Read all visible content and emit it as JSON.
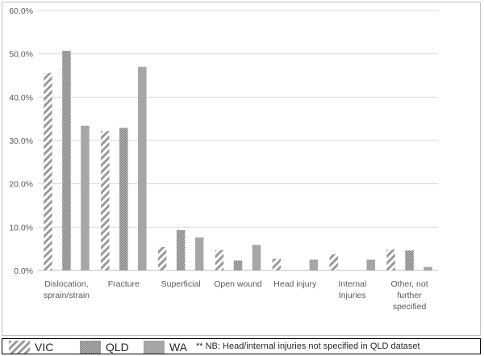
{
  "chart_data": {
    "type": "bar",
    "categories": [
      "Dislocation, sprain/strain",
      "Fracture",
      "Superficial",
      "Open wound",
      "Head injury",
      "Internal Injuries",
      "Other, not further specified"
    ],
    "category_lines": [
      [
        "Dislocation,",
        "sprain/strain"
      ],
      [
        "Fracture"
      ],
      [
        "Superficial"
      ],
      [
        "Open wound"
      ],
      [
        "Head injury"
      ],
      [
        "Internal",
        "Injuries"
      ],
      [
        "Other, not",
        "further",
        "specified"
      ]
    ],
    "series": [
      {
        "name": "VIC",
        "pattern": "diagonal-hatch",
        "values": [
          45.6,
          32.2,
          5.4,
          4.7,
          2.7,
          3.7,
          4.8
        ]
      },
      {
        "name": "QLD",
        "pattern": "dense-dots",
        "values": [
          50.7,
          32.9,
          9.3,
          2.3,
          null,
          null,
          4.6
        ]
      },
      {
        "name": "WA",
        "pattern": "solid-grey",
        "values": [
          33.4,
          47.0,
          7.6,
          5.9,
          2.5,
          2.5,
          0.8
        ]
      }
    ],
    "ylim": [
      0,
      60
    ],
    "yticks": [
      "0.0%",
      "10.0%",
      "20.0%",
      "30.0%",
      "40.0%",
      "50.0%",
      "60.0%"
    ],
    "grid": true,
    "legend_position": "bottom",
    "note": "** NB: Head/internal injuries not specified in QLD dataset",
    "colors": {
      "grid": "#d9d9d9",
      "wa": "#a6a6a6",
      "qld": "#8c8c8c",
      "vic": "#9a9a9a"
    }
  }
}
